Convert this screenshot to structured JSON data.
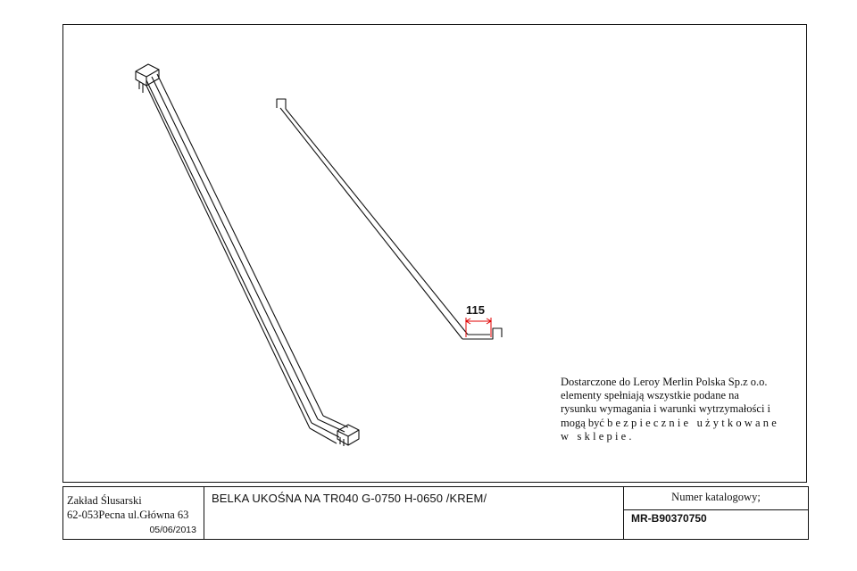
{
  "drawing": {
    "dimension_label": "115",
    "note": {
      "line1": "Dostarczone do Leroy Merlin Polska Sp.z o.o.",
      "line2": "elementy spełniają wszystkie podane na",
      "line3": "rysunku wymagania i warunki wytrzymałości i",
      "line4_start": "mogą być",
      "line4_spaced": "bezpiecznie użytkowane",
      "line5": "w sklepie."
    }
  },
  "title_block": {
    "company_name": "Zakład Ślusarski",
    "company_address": "62-053Pecna ul.Główna 63",
    "date": "05/06/2013",
    "title": "BELKA UKOŚNA NA TR040 G-0750 H-0650 /KREM/",
    "catalog_label": "Numer katalogowy;",
    "catalog_number": "MR-B90370750"
  },
  "colors": {
    "line": "#111111",
    "dimension": "#e00000",
    "background": "#ffffff"
  }
}
